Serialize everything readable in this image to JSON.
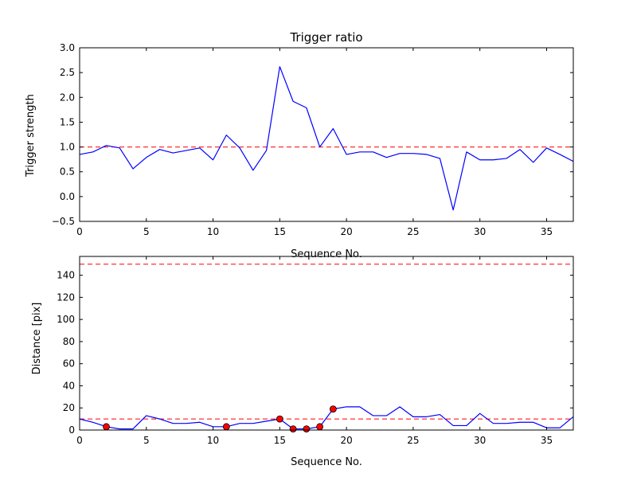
{
  "chart_data": [
    {
      "type": "line",
      "title": "Trigger ratio",
      "xlabel": "Sequence No.",
      "ylabel": "Trigger strength",
      "xlim": [
        0,
        37
      ],
      "ylim": [
        -0.5,
        3.0
      ],
      "xticks": [
        "0",
        "5",
        "10",
        "15",
        "20",
        "25",
        "30",
        "35"
      ],
      "xtick_values": [
        0,
        5,
        10,
        15,
        20,
        25,
        30,
        35
      ],
      "yticks": [
        "−0.5",
        "0.0",
        "0.5",
        "1.0",
        "1.5",
        "2.0",
        "2.5",
        "3.0"
      ],
      "ytick_values": [
        -0.5,
        0.0,
        0.5,
        1.0,
        1.5,
        2.0,
        2.5,
        3.0
      ],
      "grid": false,
      "series": [
        {
          "name": "trigger strength",
          "color": "#0000ff",
          "x": [
            0,
            1,
            2,
            3,
            4,
            5,
            6,
            7,
            8,
            9,
            10,
            11,
            12,
            13,
            14,
            15,
            16,
            17,
            18,
            19,
            20,
            21,
            22,
            23,
            24,
            25,
            26,
            27,
            28,
            29,
            30,
            31,
            32,
            33,
            34,
            35,
            36,
            37
          ],
          "values": [
            0.85,
            0.9,
            1.03,
            0.98,
            0.56,
            0.79,
            0.95,
            0.88,
            0.93,
            0.98,
            0.74,
            1.24,
            0.98,
            0.53,
            0.93,
            2.62,
            1.92,
            1.79,
            1.0,
            1.37,
            0.85,
            0.9,
            0.9,
            0.79,
            0.87,
            0.87,
            0.85,
            0.77,
            -0.27,
            0.9,
            0.74,
            0.74,
            0.77,
            0.95,
            0.69,
            0.98,
            0.85,
            0.71
          ]
        }
      ],
      "reference_lines": [
        {
          "y": 1.0,
          "color": "#ff0000",
          "style": "dashed"
        }
      ]
    },
    {
      "type": "line",
      "title": "",
      "xlabel": "Sequence No.",
      "ylabel": "Distance [pix]",
      "xlim": [
        0,
        37
      ],
      "ylim": [
        0,
        157
      ],
      "xticks": [
        "0",
        "5",
        "10",
        "15",
        "20",
        "25",
        "30",
        "35"
      ],
      "xtick_values": [
        0,
        5,
        10,
        15,
        20,
        25,
        30,
        35
      ],
      "yticks": [
        "0",
        "20",
        "40",
        "60",
        "80",
        "100",
        "120",
        "140"
      ],
      "ytick_values": [
        0,
        20,
        40,
        60,
        80,
        100,
        120,
        140
      ],
      "grid": false,
      "series": [
        {
          "name": "distance",
          "color": "#0000ff",
          "x": [
            0,
            1,
            2,
            3,
            4,
            5,
            6,
            7,
            8,
            9,
            10,
            11,
            12,
            13,
            14,
            15,
            16,
            17,
            18,
            19,
            20,
            21,
            22,
            23,
            24,
            25,
            26,
            27,
            28,
            29,
            30,
            31,
            32,
            33,
            34,
            35,
            36,
            37
          ],
          "values": [
            10,
            7,
            3,
            1,
            1,
            13,
            10,
            6,
            6,
            7,
            3,
            3,
            6,
            6,
            8,
            10,
            1,
            1,
            3,
            19,
            21,
            21,
            13,
            13,
            21,
            12,
            12,
            14,
            4,
            4,
            15,
            6,
            6,
            7,
            7,
            2,
            2,
            12
          ]
        }
      ],
      "markers": {
        "color": "#ff0000",
        "x": [
          2,
          11,
          15,
          16,
          17,
          18,
          19
        ],
        "values": [
          3,
          3,
          10,
          1,
          1,
          3,
          19
        ]
      },
      "reference_lines": [
        {
          "y": 10,
          "color": "#ff0000",
          "style": "dashed"
        },
        {
          "y": 150,
          "color": "#ff0000",
          "style": "dashed"
        }
      ]
    }
  ]
}
